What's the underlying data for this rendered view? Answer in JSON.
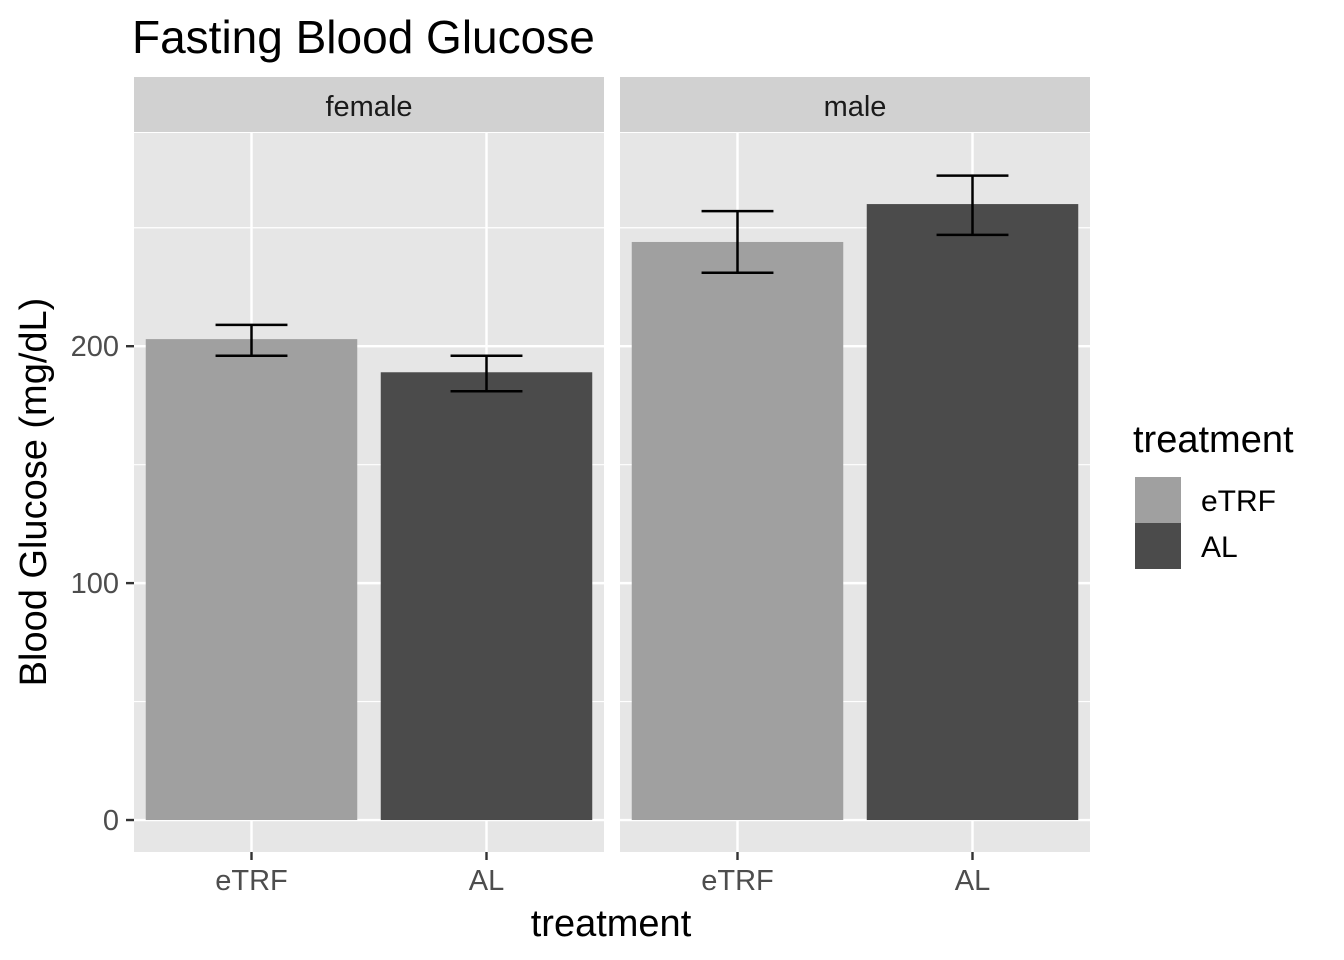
{
  "chart_data": {
    "type": "bar",
    "title": "Fasting Blood Glucose",
    "xlabel": "treatment",
    "ylabel": "Blood Glucose (mg/dL)",
    "ylim": [
      -13.5,
      290
    ],
    "y_ticks": [
      0,
      100,
      200
    ],
    "y_tick_labels": [
      "0",
      "100",
      "200"
    ],
    "categories": [
      "eTRF",
      "AL"
    ],
    "grid": true,
    "facets": [
      {
        "label": "female",
        "bars": [
          {
            "category": "eTRF",
            "value": 203,
            "err_low": 196,
            "err_high": 209
          },
          {
            "category": "AL",
            "value": 189,
            "err_low": 181,
            "err_high": 196
          }
        ]
      },
      {
        "label": "male",
        "bars": [
          {
            "category": "eTRF",
            "value": 244,
            "err_low": 231,
            "err_high": 257
          },
          {
            "category": "AL",
            "value": 260,
            "err_low": 247,
            "err_high": 272
          }
        ]
      }
    ],
    "legend": {
      "title": "treatment",
      "placement": "right",
      "entries": [
        {
          "label": "eTRF",
          "color": "#a0a0a0"
        },
        {
          "label": "AL",
          "color": "#4b4b4b"
        }
      ]
    },
    "colors": {
      "panel_bg": "#e6e6e6",
      "strip_bg": "#d1d1d1",
      "grid": "#ffffff",
      "errorbar": "#000000"
    }
  }
}
